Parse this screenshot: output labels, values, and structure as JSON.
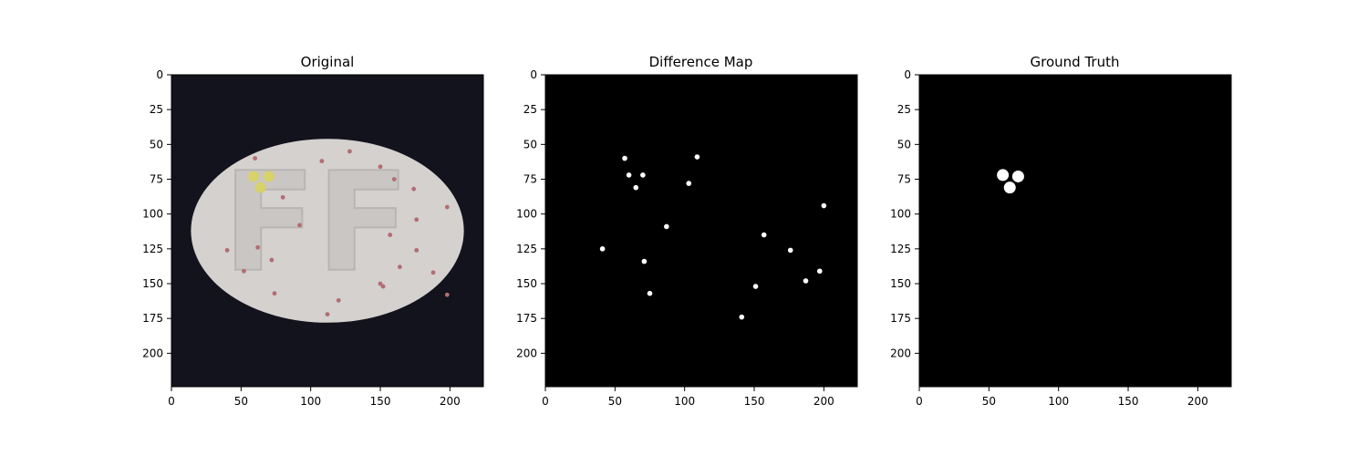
{
  "chart_data": [
    {
      "type": "image",
      "title": "Original",
      "xticks": [
        0,
        50,
        100,
        150,
        200
      ],
      "yticks": [
        0,
        25,
        50,
        75,
        100,
        125,
        150,
        175,
        200
      ],
      "xlim": [
        0,
        224
      ],
      "ylim": [
        224,
        0
      ],
      "background": "#12131c",
      "content": {
        "pill": {
          "cx": 112,
          "cy": 112,
          "rx": 98,
          "ry": 66,
          "color": "#d4d1cf"
        },
        "embossed_letters": "FF",
        "red_specks": [
          [
            60,
            60
          ],
          [
            108,
            62
          ],
          [
            128,
            55
          ],
          [
            150,
            66
          ],
          [
            160,
            75
          ],
          [
            174,
            82
          ],
          [
            198,
            95
          ],
          [
            80,
            88
          ],
          [
            92,
            108
          ],
          [
            176,
            104
          ],
          [
            157,
            115
          ],
          [
            176,
            126
          ],
          [
            62,
            124
          ],
          [
            40,
            126
          ],
          [
            72,
            133
          ],
          [
            52,
            141
          ],
          [
            164,
            138
          ],
          [
            188,
            142
          ],
          [
            150,
            150
          ],
          [
            152,
            152
          ],
          [
            120,
            162
          ],
          [
            74,
            157
          ],
          [
            198,
            158
          ],
          [
            112,
            172
          ]
        ],
        "yellow_anomaly": [
          [
            59,
            73
          ],
          [
            70,
            73
          ],
          [
            64,
            81
          ]
        ]
      }
    },
    {
      "type": "image",
      "title": "Difference Map",
      "xticks": [
        0,
        50,
        100,
        150,
        200
      ],
      "yticks": [
        0,
        25,
        50,
        75,
        100,
        125,
        150,
        175,
        200
      ],
      "xlim": [
        0,
        224
      ],
      "ylim": [
        224,
        0
      ],
      "background": "#000000",
      "foreground": "#ffffff",
      "blobs": [
        [
          57,
          60
        ],
        [
          60,
          72
        ],
        [
          70,
          72
        ],
        [
          65,
          81
        ],
        [
          103,
          78
        ],
        [
          109,
          59
        ],
        [
          87,
          109
        ],
        [
          41,
          125
        ],
        [
          71,
          134
        ],
        [
          157,
          115
        ],
        [
          176,
          126
        ],
        [
          200,
          94
        ],
        [
          197,
          141
        ],
        [
          187,
          148
        ],
        [
          151,
          152
        ],
        [
          141,
          174
        ],
        [
          75,
          157
        ]
      ]
    },
    {
      "type": "image",
      "title": "Ground Truth",
      "xticks": [
        0,
        50,
        100,
        150,
        200
      ],
      "yticks": [
        0,
        25,
        50,
        75,
        100,
        125,
        150,
        175,
        200
      ],
      "xlim": [
        0,
        224
      ],
      "ylim": [
        224,
        0
      ],
      "background": "#000000",
      "foreground": "#ffffff",
      "blobs": [
        [
          60,
          72
        ],
        [
          71,
          73
        ],
        [
          65,
          81
        ]
      ]
    }
  ]
}
